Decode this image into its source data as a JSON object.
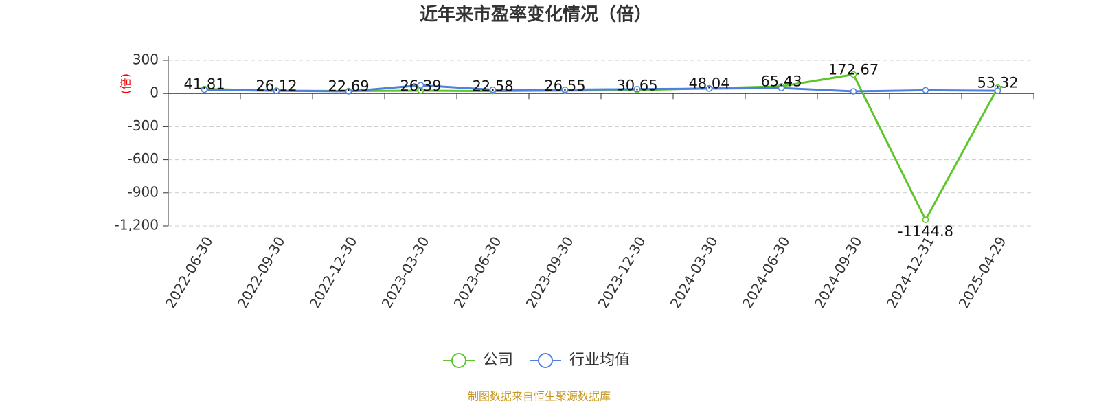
{
  "chart_data": {
    "type": "line",
    "title": "近年来市盈率变化情况（倍）",
    "y_label": "(倍)",
    "categories": [
      "2022-06-30",
      "2022-09-30",
      "2022-12-30",
      "2023-03-30",
      "2023-06-30",
      "2023-09-30",
      "2023-12-30",
      "2024-03-30",
      "2024-06-30",
      "2024-09-30",
      "2024-12-31",
      "2025-04-29"
    ],
    "series": [
      {
        "name": "公司",
        "color": "#5cc62a",
        "values": [
          41.81,
          26.12,
          22.69,
          26.39,
          22.58,
          26.55,
          30.65,
          48.04,
          65.43,
          172.67,
          -1144.8,
          53.32
        ]
      },
      {
        "name": "行业均值",
        "color": "#4f80e0",
        "values": [
          35,
          25,
          20,
          75,
          35,
          35,
          40,
          45,
          50,
          20,
          30,
          25
        ]
      }
    ],
    "ylim": [
      -1200,
      300
    ],
    "yticks": [
      {
        "value": -1200,
        "label": "-1,200"
      },
      -900,
      -600,
      -300,
      0,
      300
    ],
    "grid": true,
    "source": "制图数据来自恒生聚源数据库"
  }
}
